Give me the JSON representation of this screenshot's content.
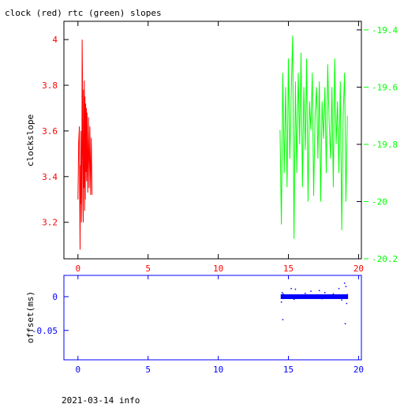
{
  "chart_data": [
    {
      "type": "line",
      "title": "clock (red) rtc (green) slopes",
      "ylabel": "clockslope",
      "xlim": [
        -1,
        20.2
      ],
      "ylim": [
        3.04,
        4.08
      ],
      "ylim_right": [
        -20.2,
        -19.37
      ],
      "x_ticks": [
        0,
        5,
        10,
        15,
        20
      ],
      "y_ticks": [
        3.2,
        3.4,
        3.6,
        3.8,
        4
      ],
      "y_ticks_right": [
        -20.2,
        -20,
        -19.8,
        -19.6,
        -19.4
      ],
      "series": [
        {
          "color": "#ff0000",
          "axis": "left",
          "x": [
            0.0,
            0.05,
            0.1,
            0.12,
            0.15,
            0.18,
            0.2,
            0.22,
            0.25,
            0.28,
            0.3,
            0.32,
            0.35,
            0.38,
            0.4,
            0.42,
            0.45,
            0.48,
            0.5,
            0.52,
            0.55,
            0.58,
            0.6,
            0.62,
            0.65,
            0.7,
            0.75,
            0.8,
            0.85,
            0.9,
            0.95,
            1.0
          ],
          "values": [
            3.3,
            3.55,
            3.62,
            3.35,
            3.08,
            3.45,
            3.28,
            3.6,
            3.2,
            3.5,
            4.0,
            3.85,
            3.3,
            3.2,
            3.78,
            3.35,
            3.82,
            3.25,
            3.75,
            3.3,
            3.72,
            3.42,
            3.7,
            3.38,
            3.68,
            3.33,
            3.66,
            3.35,
            3.62,
            3.32,
            3.57,
            3.32
          ]
        },
        {
          "color": "#00ff00",
          "axis": "right",
          "x": [
            14.4,
            14.5,
            14.6,
            14.7,
            14.8,
            14.9,
            15.0,
            15.1,
            15.2,
            15.3,
            15.4,
            15.5,
            15.6,
            15.7,
            15.8,
            15.9,
            16.0,
            16.1,
            16.2,
            16.3,
            16.4,
            16.5,
            16.6,
            16.7,
            16.8,
            16.9,
            17.0,
            17.1,
            17.2,
            17.3,
            17.4,
            17.5,
            17.6,
            17.7,
            17.8,
            17.9,
            18.0,
            18.1,
            18.2,
            18.3,
            18.4,
            18.5,
            18.6,
            18.7,
            18.8,
            18.9,
            19.0,
            19.1,
            19.2
          ],
          "values": [
            -19.75,
            -20.08,
            -19.55,
            -19.9,
            -19.6,
            -19.95,
            -19.5,
            -19.85,
            -19.62,
            -19.42,
            -20.13,
            -19.58,
            -19.9,
            -19.55,
            -19.8,
            -19.48,
            -19.95,
            -19.6,
            -19.82,
            -19.5,
            -20.0,
            -19.65,
            -19.75,
            -19.55,
            -19.98,
            -19.7,
            -19.6,
            -19.85,
            -19.58,
            -20.0,
            -19.65,
            -19.78,
            -19.6,
            -19.9,
            -19.52,
            -19.72,
            -19.85,
            -19.6,
            -19.95,
            -19.5,
            -19.8,
            -19.65,
            -19.9,
            -19.58,
            -20.1,
            -19.7,
            -19.55,
            -20.0,
            -19.7
          ]
        }
      ]
    },
    {
      "type": "scatter",
      "ylabel": "offset(ms)",
      "xlim": [
        -1,
        20.2
      ],
      "ylim": [
        -0.0935,
        0.0315
      ],
      "x_ticks": [
        0,
        5,
        10,
        15,
        20
      ],
      "y_ticks": [
        0,
        -0.05
      ],
      "series": [
        {
          "color": "#0000ff",
          "x": [
            14.5,
            14.55,
            14.6,
            14.62,
            14.7,
            15.0,
            15.2,
            15.4,
            15.5,
            15.8,
            16.0,
            16.2,
            16.4,
            16.6,
            16.8,
            17.0,
            17.2,
            17.4,
            17.6,
            17.8,
            18.0,
            18.2,
            18.4,
            18.6,
            18.8,
            19.0,
            19.05,
            19.1,
            19.15,
            19.2
          ],
          "values": [
            -0.008,
            0.006,
            -0.034,
            0.004,
            -0.002,
            0.0,
            0.012,
            -0.004,
            0.011,
            0.002,
            0.0,
            0.005,
            -0.002,
            0.008,
            0.001,
            0.0,
            0.009,
            -0.003,
            0.006,
            0.001,
            0.002,
            0.004,
            0.0,
            0.012,
            -0.005,
            0.02,
            -0.04,
            0.015,
            -0.01,
            0.003
          ]
        }
      ],
      "band": {
        "x_start": 14.45,
        "x_end": 19.25,
        "low": -0.0035,
        "high": 0.0035
      }
    }
  ],
  "footer": {
    "text": "2021-03-14 info"
  }
}
